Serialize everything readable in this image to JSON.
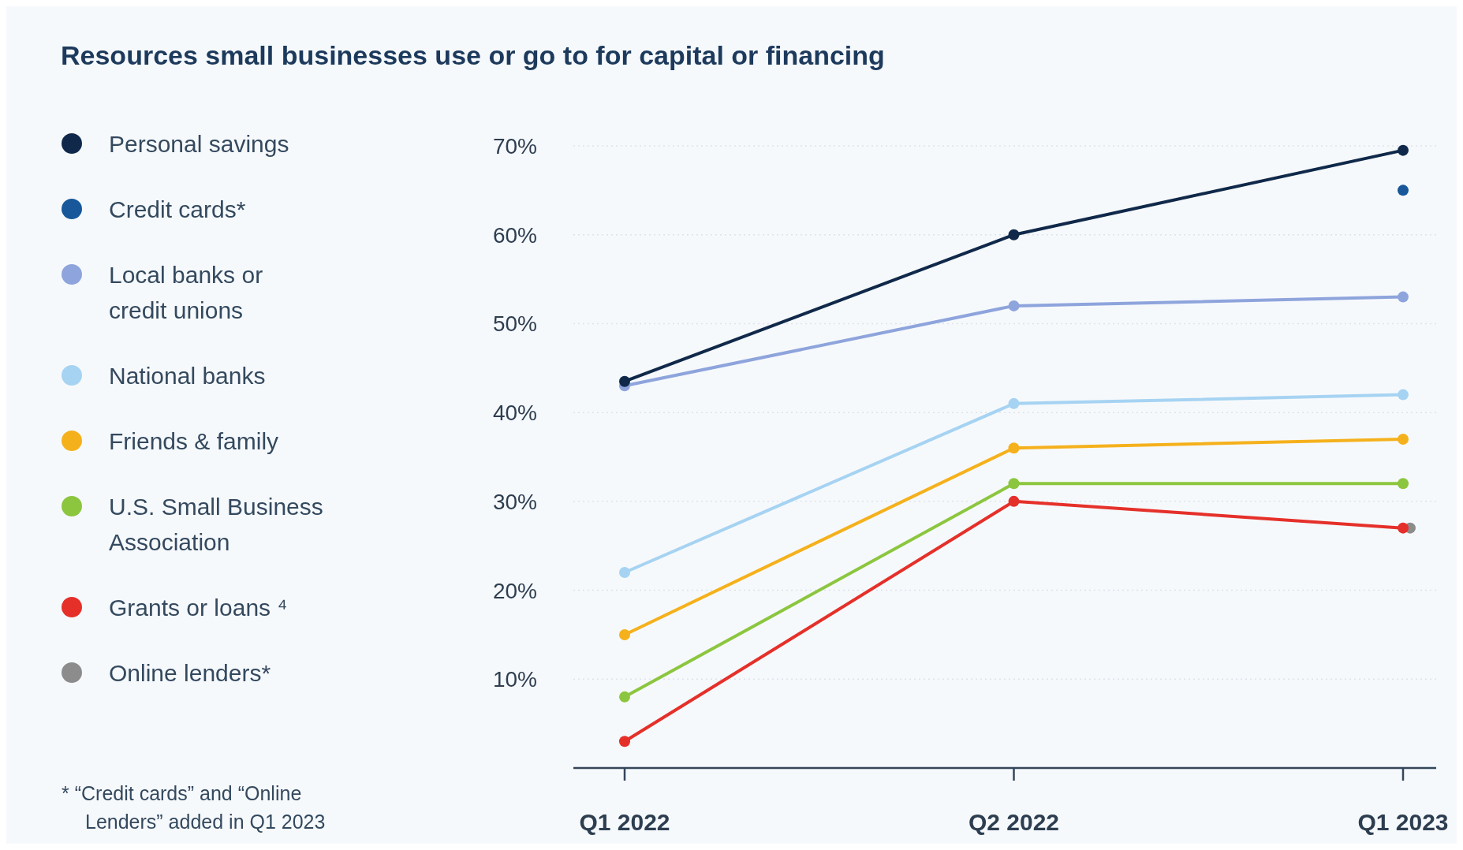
{
  "chart_data": {
    "type": "line",
    "title": "Resources small businesses use or go to for capital or financing",
    "categories": [
      "Q1 2022",
      "Q2 2022",
      "Q1 2023"
    ],
    "series": [
      {
        "name": "Personal savings",
        "color": "#10294a",
        "values": [
          43.5,
          60,
          69.5
        ]
      },
      {
        "name": "Credit cards*",
        "color": "#17579a",
        "values": [
          null,
          null,
          65
        ]
      },
      {
        "name": "Local banks or credit unions",
        "color": "#8ea4dc",
        "values": [
          43,
          52,
          53
        ]
      },
      {
        "name": "National banks",
        "color": "#a6d3f2",
        "values": [
          22,
          41,
          42
        ]
      },
      {
        "name": "Friends & family",
        "color": "#f5b11c",
        "values": [
          15,
          36,
          37
        ]
      },
      {
        "name": "U.S. Small Business Association",
        "color": "#8cc63f",
        "values": [
          8,
          32,
          32
        ]
      },
      {
        "name": "Grants or loans ⁴",
        "color": "#e5302a",
        "values": [
          3,
          30,
          27
        ]
      },
      {
        "name": "Online lenders*",
        "color": "#8c8c8c",
        "values": [
          null,
          null,
          27
        ]
      }
    ],
    "ylim": [
      0,
      70
    ],
    "yticks": [
      {
        "value": 10,
        "label": "10%"
      },
      {
        "value": 20,
        "label": "20%"
      },
      {
        "value": 30,
        "label": "30%"
      },
      {
        "value": 40,
        "label": "40%"
      },
      {
        "value": 50,
        "label": "50%"
      },
      {
        "value": 60,
        "label": "60%"
      },
      {
        "value": 70,
        "label": "70%"
      }
    ],
    "grid": "y",
    "legend": "left",
    "marker": "circle",
    "line_style": "solid",
    "annotations": [
      "* “Credit cards” and “Online Lenders” added in Q1 2023"
    ]
  }
}
